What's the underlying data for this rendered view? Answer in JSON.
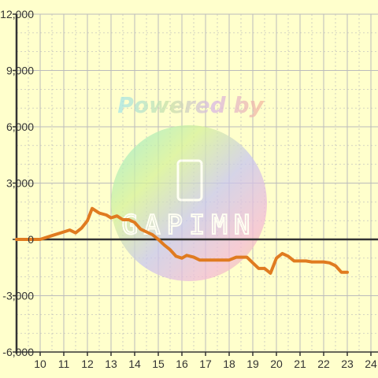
{
  "chart_data": {
    "type": "line",
    "title": "",
    "xlabel": "",
    "ylabel": "",
    "xlim": [
      9,
      24.3
    ],
    "ylim": [
      -6000,
      12000
    ],
    "x_ticks": [
      10,
      11,
      12,
      13,
      14,
      15,
      16,
      17,
      18,
      19,
      20,
      21,
      22,
      23,
      24
    ],
    "y_ticks": [
      -6000,
      -3000,
      0,
      3000,
      6000,
      9000,
      12000
    ],
    "x_tick_labels": [
      "10",
      "11",
      "12",
      "13",
      "14",
      "15",
      "16",
      "17",
      "18",
      "19",
      "20",
      "21",
      "22",
      "23",
      "24"
    ],
    "y_tick_labels": [
      "-6,000",
      "-3,000",
      "0",
      "3,000",
      "6,000",
      "9,000",
      "12,000"
    ],
    "grid": true,
    "background_color": "#ffffcc",
    "grid_color": "#bbbbbb",
    "axis_color": "#333333",
    "series": [
      {
        "color": "#e07b20",
        "points": [
          [
            9.0,
            0
          ],
          [
            10.0,
            0
          ],
          [
            10.5,
            200
          ],
          [
            11.0,
            400
          ],
          [
            11.25,
            500
          ],
          [
            11.5,
            350
          ],
          [
            11.75,
            600
          ],
          [
            12.0,
            1000
          ],
          [
            12.2,
            1650
          ],
          [
            12.5,
            1400
          ],
          [
            12.8,
            1300
          ],
          [
            13.0,
            1150
          ],
          [
            13.25,
            1250
          ],
          [
            13.5,
            1050
          ],
          [
            13.75,
            1050
          ],
          [
            14.0,
            900
          ],
          [
            14.25,
            550
          ],
          [
            14.5,
            400
          ],
          [
            14.75,
            250
          ],
          [
            15.0,
            0
          ],
          [
            15.25,
            -300
          ],
          [
            15.5,
            -550
          ],
          [
            15.75,
            -900
          ],
          [
            16.0,
            -1000
          ],
          [
            16.2,
            -850
          ],
          [
            16.5,
            -950
          ],
          [
            16.75,
            -1100
          ],
          [
            17.0,
            -1100
          ],
          [
            17.5,
            -1100
          ],
          [
            18.0,
            -1100
          ],
          [
            18.3,
            -950
          ],
          [
            18.75,
            -950
          ],
          [
            19.0,
            -1250
          ],
          [
            19.25,
            -1550
          ],
          [
            19.5,
            -1550
          ],
          [
            19.75,
            -1800
          ],
          [
            20.0,
            -1000
          ],
          [
            20.25,
            -750
          ],
          [
            20.5,
            -900
          ],
          [
            20.75,
            -1150
          ],
          [
            21.0,
            -1150
          ],
          [
            21.25,
            -1150
          ],
          [
            21.5,
            -1200
          ],
          [
            22.0,
            -1200
          ],
          [
            22.25,
            -1250
          ],
          [
            22.5,
            -1400
          ],
          [
            22.75,
            -1750
          ],
          [
            23.0,
            -1750
          ]
        ]
      }
    ]
  },
  "watermark": {
    "line1": "Powered by",
    "line2": "GAPIMN"
  }
}
